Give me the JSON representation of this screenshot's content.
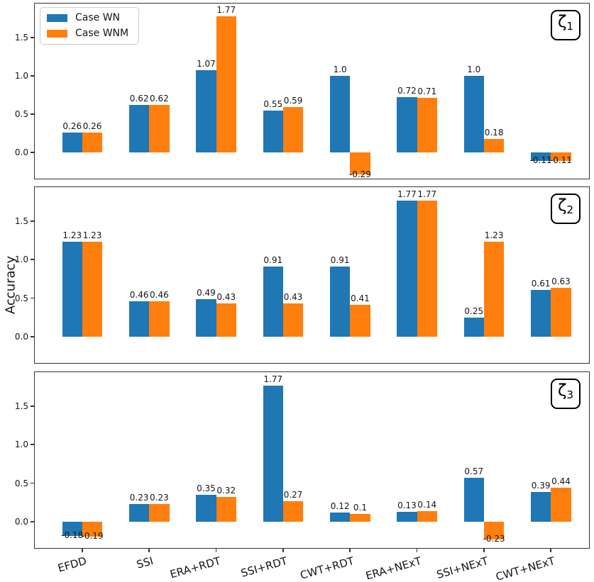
{
  "figure": {
    "ylabel": "Accuracy",
    "yticks": [
      "0.0",
      "0.5",
      "1.0",
      "1.5"
    ],
    "colors": {
      "case_wn": "#1f77b4",
      "case_wnm": "#ff7f0e",
      "axis": "#333333"
    },
    "legend": {
      "items": [
        {
          "label": "Case WN",
          "color": "#1f77b4"
        },
        {
          "label": "Case WNM",
          "color": "#ff7f0e"
        }
      ]
    }
  },
  "chart_data": [
    {
      "type": "bar",
      "panel_label": {
        "sym": "ζ",
        "sub": "1"
      },
      "categories": [
        "EFDD",
        "SSI",
        "ERA+RDT",
        "SSI+RDT",
        "CWT+RDT",
        "ERA+NExT",
        "SSI+NExT",
        "CWT+NExT"
      ],
      "ylim": [
        -0.35,
        1.95
      ],
      "legend_position": "upper left",
      "grid": false,
      "series": [
        {
          "name": "Case WN",
          "color": "#1f77b4",
          "values": [
            0.26,
            0.62,
            1.07,
            0.55,
            1.0,
            0.72,
            1.0,
            -0.11
          ],
          "labels": [
            "0.26",
            "0.62",
            "1.07",
            "0.55",
            "1.0",
            "0.72",
            "1.0",
            "-0.11"
          ]
        },
        {
          "name": "Case WNM",
          "color": "#ff7f0e",
          "values": [
            0.26,
            0.62,
            1.77,
            0.59,
            -0.29,
            0.71,
            0.18,
            -0.11
          ],
          "labels": [
            "0.26",
            "0.62",
            "1.77",
            "0.59",
            "-0.29",
            "0.71",
            "0.18",
            "-0.11"
          ]
        }
      ]
    },
    {
      "type": "bar",
      "panel_label": {
        "sym": "ζ",
        "sub": "2"
      },
      "categories": [
        "EFDD",
        "SSI",
        "ERA+RDT",
        "SSI+RDT",
        "CWT+RDT",
        "ERA+NExT",
        "SSI+NExT",
        "CWT+NExT"
      ],
      "ylim": [
        -0.35,
        1.95
      ],
      "grid": false,
      "series": [
        {
          "name": "Case WN",
          "color": "#1f77b4",
          "values": [
            1.23,
            0.46,
            0.49,
            0.91,
            0.91,
            1.77,
            0.25,
            0.61
          ],
          "labels": [
            "1.23",
            "0.46",
            "0.49",
            "0.91",
            "0.91",
            "1.77",
            "0.25",
            "0.61"
          ]
        },
        {
          "name": "Case WNM",
          "color": "#ff7f0e",
          "values": [
            1.23,
            0.46,
            0.43,
            0.43,
            0.41,
            1.77,
            1.23,
            0.63
          ],
          "labels": [
            "1.23",
            "0.46",
            "0.43",
            "0.43",
            "0.41",
            "1.77",
            "1.23",
            "0.63"
          ]
        }
      ]
    },
    {
      "type": "bar",
      "panel_label": {
        "sym": "ζ",
        "sub": "3"
      },
      "categories": [
        "EFDD",
        "SSI",
        "ERA+RDT",
        "SSI+RDT",
        "CWT+RDT",
        "ERA+NExT",
        "SSI+NExT",
        "CWT+NExT"
      ],
      "ylim": [
        -0.35,
        1.95
      ],
      "grid": false,
      "series": [
        {
          "name": "Case WN",
          "color": "#1f77b4",
          "values": [
            -0.18,
            0.23,
            0.35,
            1.77,
            0.12,
            0.13,
            0.57,
            0.39
          ],
          "labels": [
            "-0.18",
            "0.23",
            "0.35",
            "1.77",
            "0.12",
            "0.13",
            "0.57",
            "0.39"
          ]
        },
        {
          "name": "Case WNM",
          "color": "#ff7f0e",
          "values": [
            -0.19,
            0.23,
            0.32,
            0.27,
            0.1,
            0.14,
            -0.23,
            0.44
          ],
          "labels": [
            "-0.19",
            "0.23",
            "0.32",
            "0.27",
            "0.1",
            "0.14",
            "-0.23",
            "0.44"
          ]
        }
      ]
    }
  ]
}
